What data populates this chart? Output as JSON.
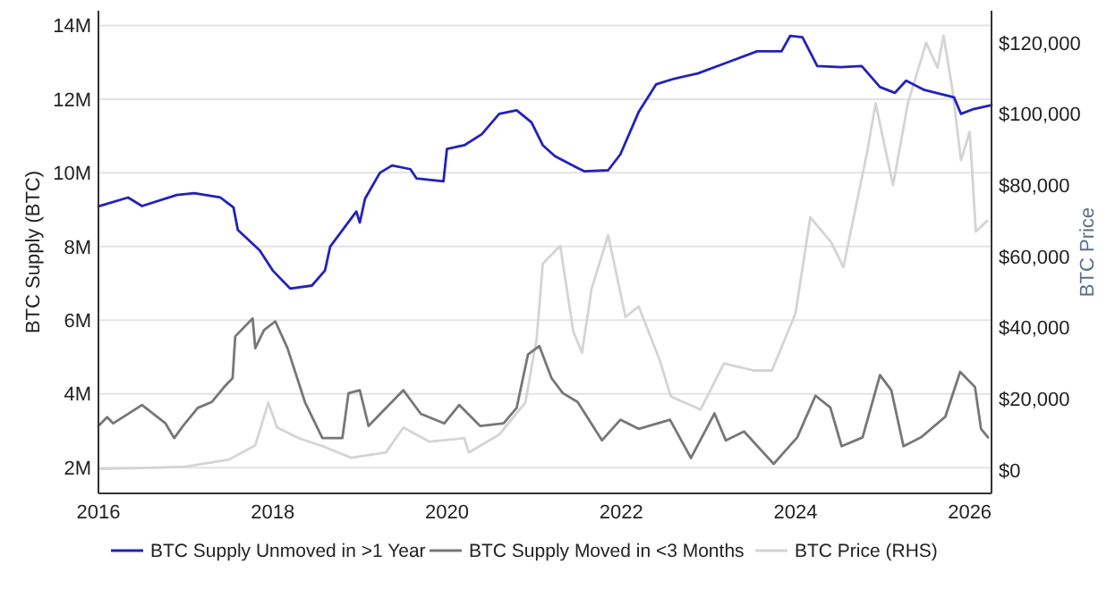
{
  "chart_data": {
    "type": "line",
    "ylabel": "BTC Supply (BTC)",
    "y2label": "BTC Price",
    "xlim": [
      2016,
      2026.25
    ],
    "xticks": [
      2016,
      2018,
      2020,
      2022,
      2024,
      2026
    ],
    "ylim": [
      1.3,
      14.4
    ],
    "yticks": [
      {
        "value": 2,
        "label": "2M"
      },
      {
        "value": 4,
        "label": "4M"
      },
      {
        "value": 6,
        "label": "6M"
      },
      {
        "value": 8,
        "label": "8M"
      },
      {
        "value": 10,
        "label": "10M"
      },
      {
        "value": 12,
        "label": "12M"
      },
      {
        "value": 14,
        "label": "14M"
      }
    ],
    "y2lim": [
      -6500,
      129000
    ],
    "y2ticks": [
      {
        "value": 0,
        "label": "$0"
      },
      {
        "value": 20000,
        "label": "$20,000"
      },
      {
        "value": 40000,
        "label": "$40,000"
      },
      {
        "value": 60000,
        "label": "$60,000"
      },
      {
        "value": 80000,
        "label": "$80,000"
      },
      {
        "value": 100000,
        "label": "$100,000"
      },
      {
        "value": 120000,
        "label": "$120,000"
      }
    ],
    "grid": "y",
    "legend": "bottom",
    "line_style": "solid",
    "series": [
      {
        "name": "BTC Supply Unmoved in >1 Year",
        "color": "#2222bb",
        "x": [
          2016,
          2016.34,
          2016.5,
          2016.9,
          2017.1,
          2017.4,
          2017.55,
          2017.6,
          2017.85,
          2018,
          2018.2,
          2018.45,
          2018.6,
          2018.66,
          2018.96,
          2019,
          2019.06,
          2019.23,
          2019.37,
          2019.58,
          2019.65,
          2019.96,
          2020,
          2020.2,
          2020.4,
          2020.6,
          2020.8,
          2020.97,
          2021.1,
          2021.24,
          2021.5,
          2021.58,
          2021.85,
          2021.99,
          2022.2,
          2022.4,
          2022.6,
          2022.88,
          2023.22,
          2023.56,
          2023.84,
          2023.94,
          2024.08,
          2024.25,
          2024.52,
          2024.76,
          2024.97,
          2025.14,
          2025.27,
          2025.48,
          2025.82,
          2025.9,
          2026.03,
          2026.25
        ],
        "values": [
          9.09,
          9.33,
          9.1,
          9.4,
          9.45,
          9.33,
          9.06,
          8.45,
          7.9,
          7.35,
          6.86,
          6.94,
          7.35,
          8.0,
          8.95,
          8.65,
          9.3,
          10.0,
          10.2,
          10.1,
          9.85,
          9.77,
          10.65,
          10.75,
          11.05,
          11.6,
          11.7,
          11.37,
          10.75,
          10.45,
          10.13,
          10.04,
          10.07,
          10.5,
          11.65,
          12.4,
          12.55,
          12.7,
          13.0,
          13.3,
          13.3,
          13.72,
          13.68,
          12.9,
          12.87,
          12.9,
          12.33,
          12.17,
          12.5,
          12.25,
          12.05,
          11.6,
          11.72,
          11.84
        ]
      },
      {
        "name": "BTC Supply Moved in <3 Months",
        "color": "#777777",
        "x": [
          2016,
          2016.1,
          2016.17,
          2016.5,
          2016.77,
          2016.87,
          2016.97,
          2017.14,
          2017.3,
          2017.44,
          2017.54,
          2017.57,
          2017.77,
          2017.8,
          2017.9,
          2018.03,
          2018.17,
          2018.37,
          2018.57,
          2018.8,
          2018.87,
          2019,
          2019.1,
          2019.5,
          2019.7,
          2019.97,
          2020.14,
          2020.38,
          2020.65,
          2020.8,
          2020.93,
          2021.06,
          2021.2,
          2021.33,
          2021.5,
          2021.78,
          2021.99,
          2022.2,
          2022.56,
          2022.8,
          2023.07,
          2023.2,
          2023.41,
          2023.75,
          2024.02,
          2024.23,
          2024.4,
          2024.53,
          2024.77,
          2024.97,
          2025.1,
          2025.24,
          2025.44,
          2025.72,
          2025.89,
          2026.06,
          2026.13,
          2026.21
        ],
        "values": [
          3.13,
          3.37,
          3.2,
          3.7,
          3.2,
          2.8,
          3.13,
          3.62,
          3.78,
          4.18,
          4.43,
          5.56,
          6.05,
          5.24,
          5.73,
          5.97,
          5.24,
          3.78,
          2.8,
          2.8,
          4.02,
          4.1,
          3.13,
          4.1,
          3.46,
          3.2,
          3.7,
          3.13,
          3.2,
          3.62,
          5.07,
          5.3,
          4.43,
          4.02,
          3.78,
          2.74,
          3.3,
          3.05,
          3.3,
          2.26,
          3.47,
          2.74,
          2.98,
          2.1,
          2.82,
          3.95,
          3.63,
          2.58,
          2.82,
          4.51,
          4.1,
          2.58,
          2.82,
          3.38,
          4.6,
          4.19,
          3.05,
          2.82
        ]
      },
      {
        "name": "BTC Price (RHS)",
        "color": "#d4d4d4",
        "axis": "y2",
        "x": [
          2016,
          2016.5,
          2017,
          2017.5,
          2017.8,
          2017.95,
          2018.05,
          2018.3,
          2018.6,
          2018.9,
          2019.3,
          2019.5,
          2019.8,
          2020.2,
          2020.25,
          2020.6,
          2020.9,
          2021.03,
          2021.1,
          2021.3,
          2021.45,
          2021.55,
          2021.66,
          2021.85,
          2022.05,
          2022.2,
          2022.44,
          2022.57,
          2022.91,
          2023.18,
          2023.52,
          2023.73,
          2024,
          2024.17,
          2024.41,
          2024.55,
          2024.82,
          2024.92,
          2025.12,
          2025.29,
          2025.5,
          2025.63,
          2025.7,
          2025.8,
          2025.9,
          2026,
          2026.07,
          2026.2
        ],
        "values": [
          400,
          600,
          1000,
          3000,
          7000,
          19000,
          12000,
          9000,
          6500,
          3500,
          5000,
          12000,
          8000,
          9000,
          5000,
          10000,
          19000,
          37000,
          58000,
          63000,
          39000,
          33000,
          51000,
          66000,
          43000,
          46000,
          31000,
          20700,
          17000,
          30000,
          28000,
          28000,
          44000,
          71000,
          64000,
          57000,
          89000,
          103000,
          80000,
          103000,
          120000,
          113000,
          122000,
          107000,
          87000,
          95000,
          67000,
          70000
        ]
      }
    ]
  }
}
